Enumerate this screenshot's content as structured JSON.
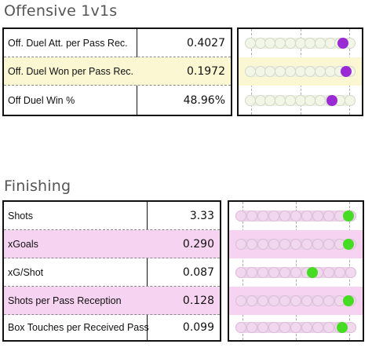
{
  "offensive": {
    "title": "Offensive 1v1s",
    "marker_color": "#9a2ad6",
    "rows": [
      {
        "label": "Off. Duel Att. per Pass Rec.",
        "value": "0.4027",
        "percentile": 0.93
      },
      {
        "label": "Off. Duel Won per Pass Rec.",
        "value": "0.1972",
        "percentile": 0.96
      },
      {
        "label": "Off Duel Win %",
        "value": "48.96%",
        "percentile": 0.82
      }
    ]
  },
  "finishing": {
    "title": "Finishing",
    "marker_color": "#44dd22",
    "rows": [
      {
        "label": "Shots",
        "value": "3.33",
        "percentile": 0.98
      },
      {
        "label": "xGoals",
        "value": "0.290",
        "percentile": 0.98
      },
      {
        "label": "xG/Shot",
        "value": "0.087",
        "percentile": 0.65
      },
      {
        "label": "Shots per Pass Reception",
        "value": "0.128",
        "percentile": 0.98
      },
      {
        "label": "Box Touches per Received Pass",
        "value": "0.099",
        "percentile": 0.92
      }
    ]
  }
}
